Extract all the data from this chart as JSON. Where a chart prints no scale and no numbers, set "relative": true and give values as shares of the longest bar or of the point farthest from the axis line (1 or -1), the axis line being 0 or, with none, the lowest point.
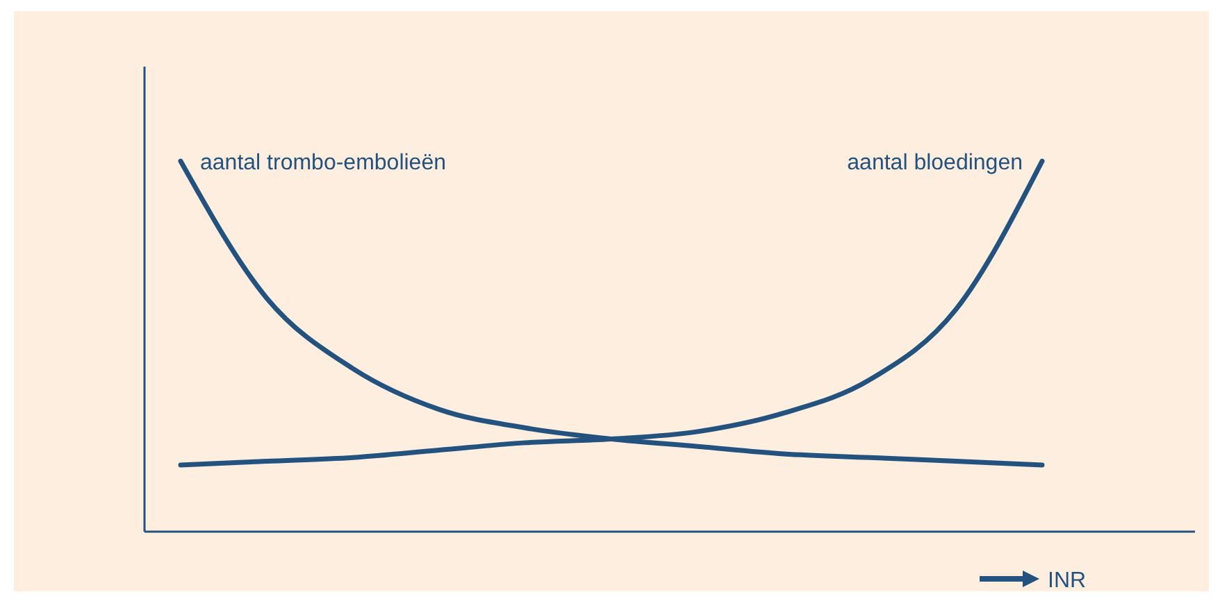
{
  "chart_data": {
    "type": "line",
    "relative": true,
    "xlabel": "INR",
    "marker": "none",
    "line_style": "solid",
    "categories": [
      null,
      null,
      null,
      null,
      null,
      null,
      null,
      null,
      null,
      null,
      null
    ],
    "series": [
      {
        "name": "aantal trombo-embolieën",
        "color": "#24527f",
        "values": [
          1,
          0.63,
          0.44,
          0.33,
          0.28,
          0.25,
          0.23,
          0.21,
          0.2,
          0.19,
          0.18
        ]
      },
      {
        "name": "aantal bloedingen",
        "color": "#24527f",
        "values": [
          0.18,
          0.19,
          0.2,
          0.22,
          0.24,
          0.25,
          0.27,
          0.32,
          0.41,
          0.6,
          1
        ]
      }
    ]
  }
}
